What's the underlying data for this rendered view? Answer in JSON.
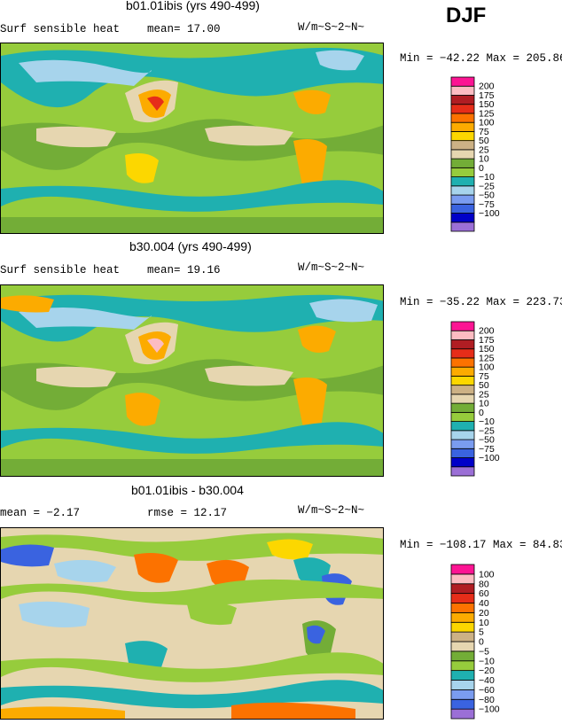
{
  "season": "DJF",
  "colors": {
    "abs": [
      "#9b6fd6",
      "#0000c8",
      "#3a63e0",
      "#7a9cf0",
      "#a7d4ec",
      "#1fb0b0",
      "#96cc3c",
      "#73ad37",
      "#e6d6b0",
      "#ccb185",
      "#fcd700",
      "#fcab00",
      "#fc7200",
      "#e62d19",
      "#b01d23",
      "#fcbcc2",
      "#fc1493"
    ],
    "diff": [
      "#9b6fd6",
      "#3a63e0",
      "#7a9cf0",
      "#a7d4ec",
      "#1fb0b0",
      "#96cc3c",
      "#73ad37",
      "#e6d6b0",
      "#ccb185",
      "#fcd700",
      "#fcab00",
      "#fc7200",
      "#e62d19",
      "#b01d23",
      "#fcbcc2",
      "#fc1493"
    ]
  },
  "panels": [
    {
      "title": "b01.01ibis (yrs 490-499)",
      "left_text": "Surf sensible heat",
      "mid_text": "mean=  17.00",
      "units": "W/m~S~2~N~",
      "minmax": "Min = −42.22 Max = 205.86",
      "levels": [
        "200",
        "175",
        "150",
        "125",
        "100",
        "75",
        "50",
        "25",
        "10",
        "0",
        "−10",
        "−25",
        "−50",
        "−75",
        "−100"
      ]
    },
    {
      "title": "b30.004 (yrs 490-499)",
      "left_text": "Surf sensible heat",
      "mid_text": "mean=  19.16",
      "units": "W/m~S~2~N~",
      "minmax": "Min = −35.22 Max = 223.73",
      "levels": [
        "200",
        "175",
        "150",
        "125",
        "100",
        "75",
        "50",
        "25",
        "10",
        "0",
        "−10",
        "−25",
        "−50",
        "−75",
        "−100"
      ]
    },
    {
      "title": "b01.01ibis - b30.004",
      "left_text": "mean =   −2.17",
      "mid_text": "rmse =  12.17",
      "units": "W/m~S~2~N~",
      "minmax": "Min = −108.17 Max =  84.83",
      "levels": [
        "100",
        "80",
        "60",
        "40",
        "20",
        "10",
        "5",
        "0",
        "−5",
        "−10",
        "−20",
        "−40",
        "−60",
        "−80",
        "−100"
      ]
    }
  ]
}
